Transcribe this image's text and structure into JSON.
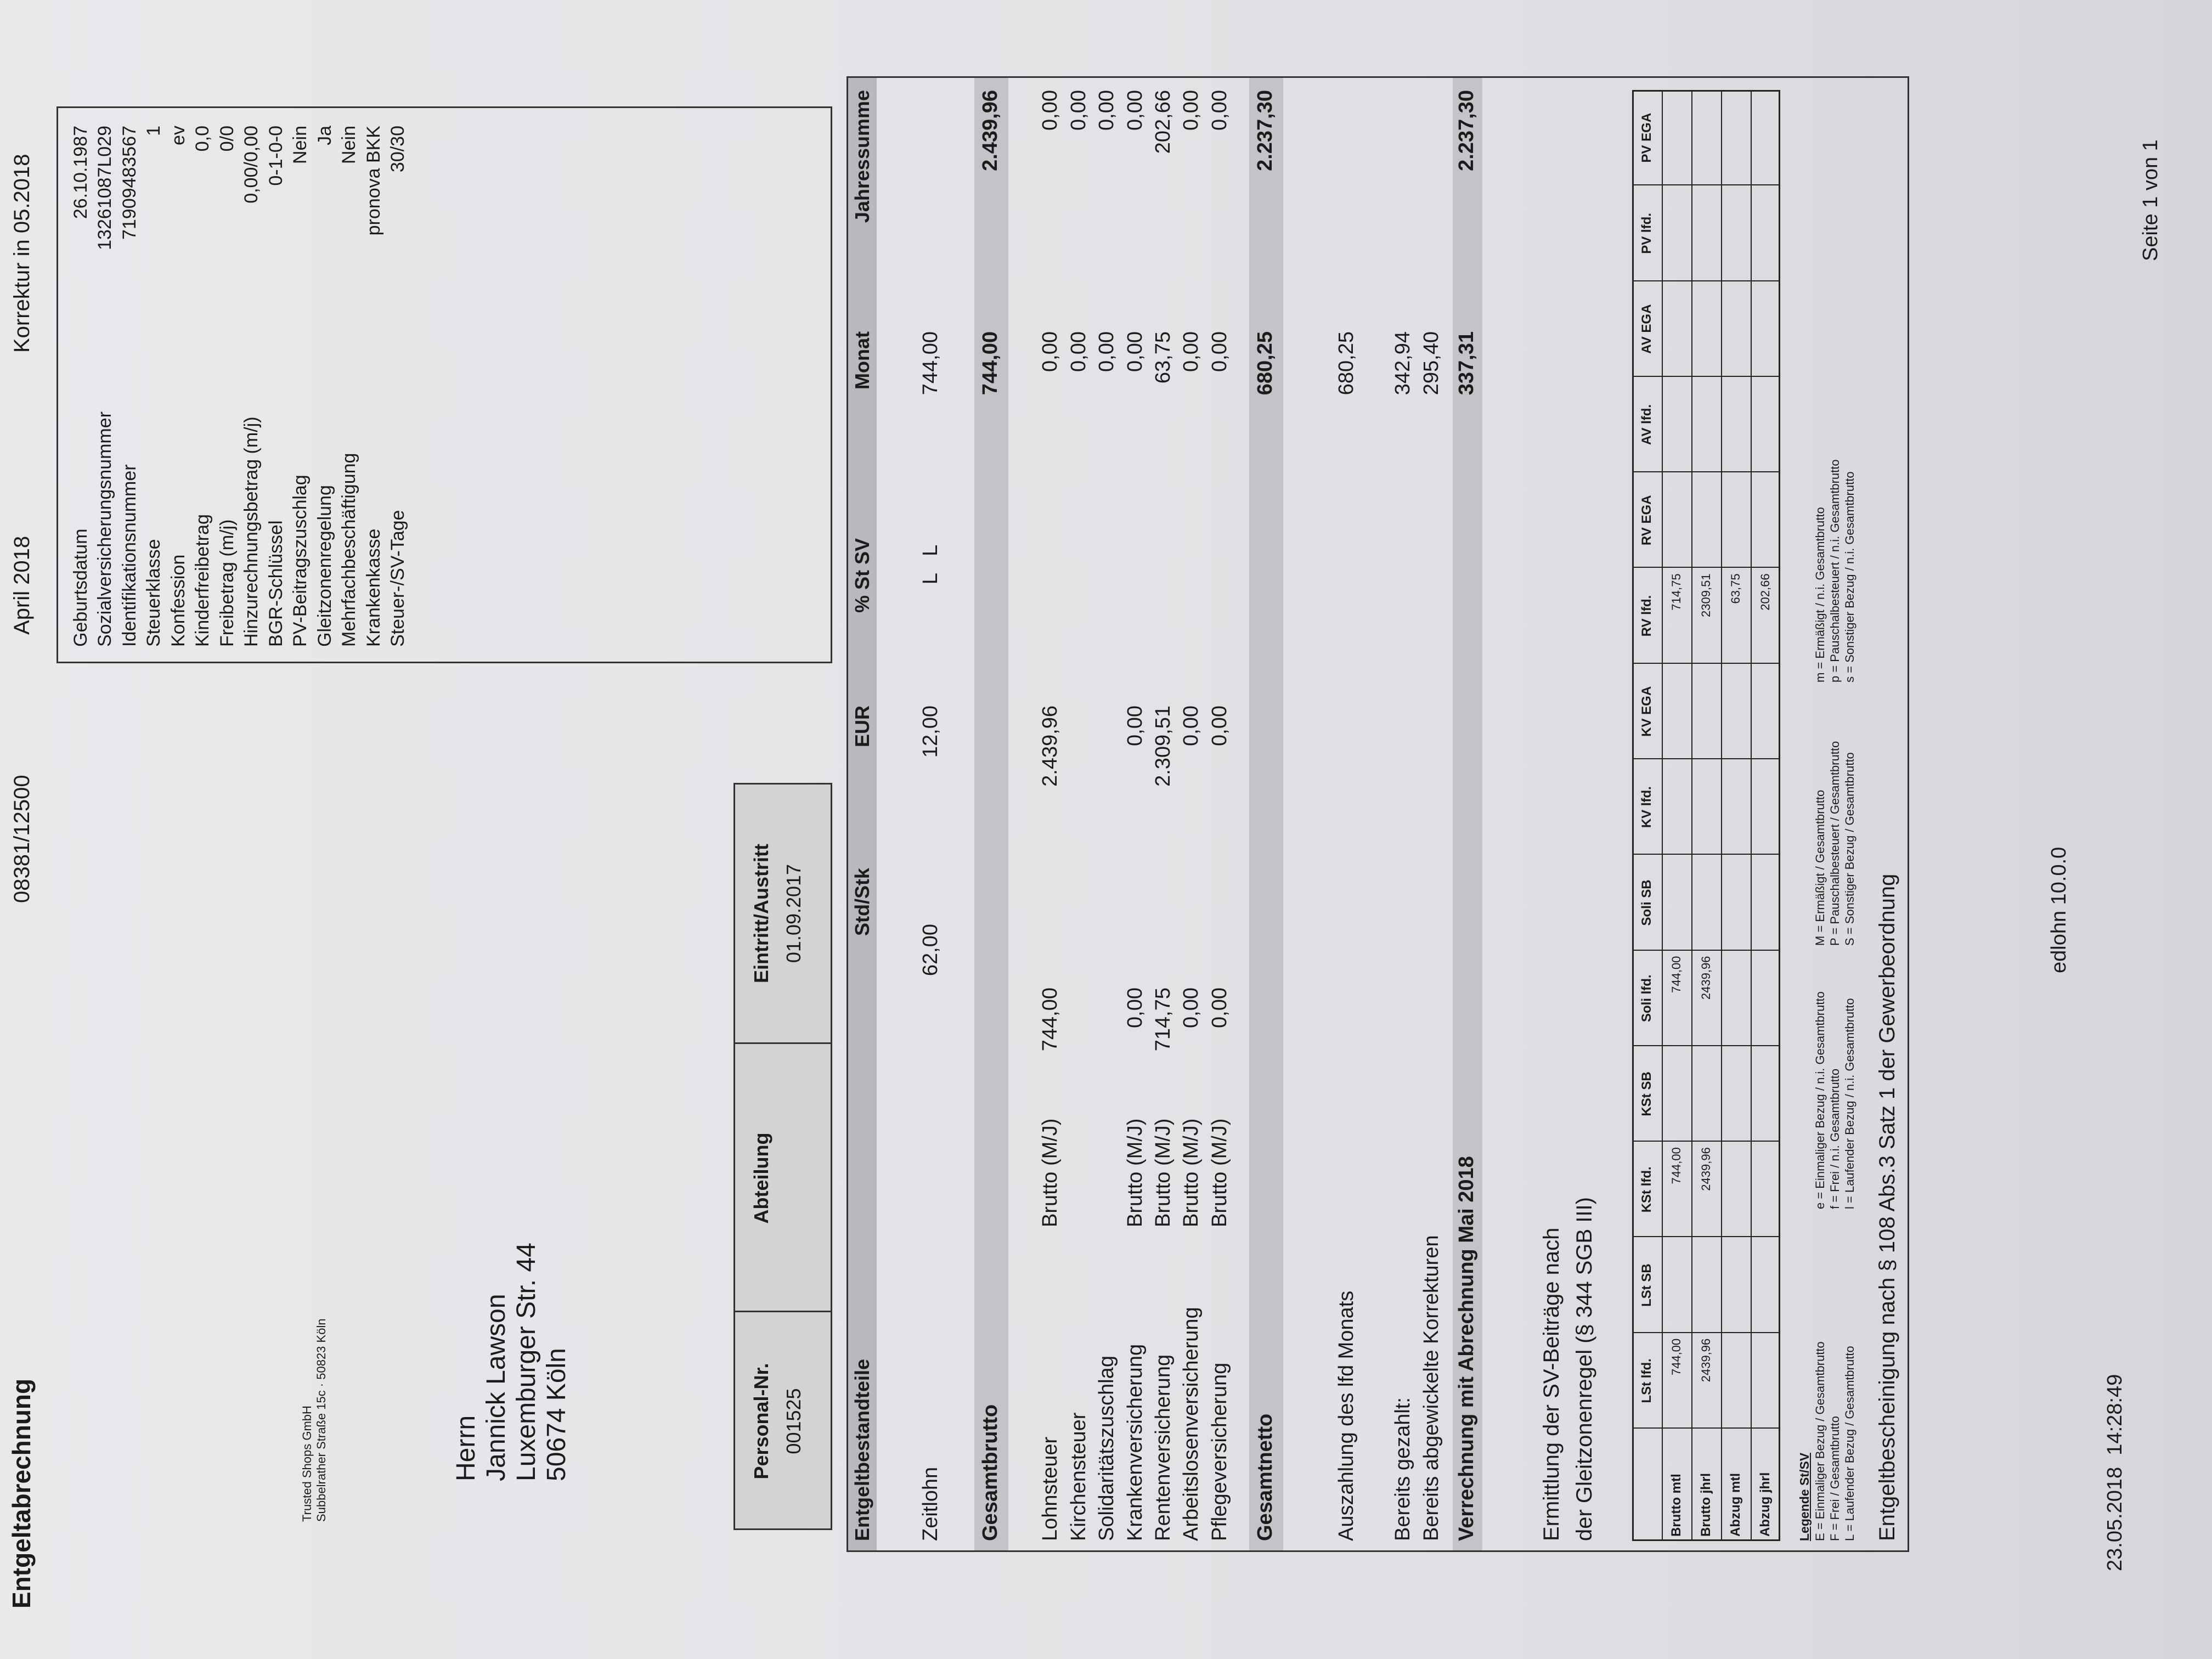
{
  "header": {
    "title": "Entgeltabrechnung",
    "number": "08381/12500",
    "period": "April 2018",
    "correction": "Korrektur in 05.2018"
  },
  "company": {
    "name": "Trusted Shops GmbH",
    "address": "Subbelrather Straße 15c · 50823 Köln"
  },
  "recipient": {
    "salutation": "Herrn",
    "name": "Jannick Lawson",
    "street": "Luxemburger Str. 44",
    "city": "50674 Köln"
  },
  "info": [
    {
      "label": "Geburtsdatum",
      "value": "26.10.1987"
    },
    {
      "label": "Sozialversicherungsnummer",
      "value": "13261087L029"
    },
    {
      "label": "Identifikationsnummer",
      "value": "71909483567"
    },
    {
      "label": "Steuerklasse",
      "value": "1"
    },
    {
      "label": "Konfession",
      "value": "ev"
    },
    {
      "label": "Kinderfreibetrag",
      "value": "0,0"
    },
    {
      "label": "Freibetrag (m/j)",
      "value": "0/0"
    },
    {
      "label": "Hinzurechnungsbetrag (m/j)",
      "value": "0,00/0,00"
    },
    {
      "label": "BGR-Schlüssel",
      "value": "0-1-0-0"
    },
    {
      "label": "PV-Beitragszuschlag",
      "value": "Nein"
    },
    {
      "label": "Gleitzonenregelung",
      "value": "Ja"
    },
    {
      "label": "Mehrfachbeschäftigung",
      "value": "Nein"
    },
    {
      "label": "Krankenkasse",
      "value": "pronova BKK"
    },
    {
      "label": "Steuer-/SV-Tage",
      "value": "30/30"
    }
  ],
  "employee": {
    "headers": [
      "Personal-Nr.",
      "Abteilung",
      "Eintritt/Austritt"
    ],
    "values": [
      "001525",
      null,
      "01.09.2017"
    ]
  },
  "main_table": {
    "headers": [
      "Entgeltbestandteile",
      "Std/Stk",
      "EUR",
      "% St SV",
      "Monat",
      "Jahressumme"
    ],
    "rows": [
      [
        "Zeitlohn",
        null,
        "62,00",
        "12,00",
        "L   L",
        "744,00",
        null
      ],
      [
        "Gesamtbrutto",
        null,
        null,
        null,
        null,
        "744,00",
        "2.439,96"
      ],
      [
        "Lohnsteuer",
        "Brutto (M/J)",
        "744,00",
        "2.439,96",
        null,
        "0,00",
        "0,00"
      ],
      [
        "Kirchensteuer",
        null,
        null,
        null,
        null,
        "0,00",
        "0,00"
      ],
      [
        "Solidaritätszuschlag",
        null,
        null,
        null,
        null,
        "0,00",
        "0,00"
      ],
      [
        "Krankenversicherung",
        "Brutto (M/J)",
        "0,00",
        "0,00",
        null,
        "0,00",
        "0,00"
      ],
      [
        "Rentenversicherung",
        "Brutto (M/J)",
        "714,75",
        "2.309,51",
        null,
        "63,75",
        "202,66"
      ],
      [
        "Arbeitslosenversicherung",
        "Brutto (M/J)",
        "0,00",
        "0,00",
        null,
        "0,00",
        "0,00"
      ],
      [
        "Pflegeversicherung",
        "Brutto (M/J)",
        "0,00",
        "0,00",
        null,
        "0,00",
        "0,00"
      ],
      [
        "Gesamtnetto",
        null,
        null,
        null,
        null,
        "680,25",
        "2.237,30"
      ],
      [
        "Auszahlung des lfd Monats",
        null,
        null,
        null,
        null,
        "680,25",
        null
      ],
      [
        "Bereits gezahlt:",
        null,
        null,
        null,
        null,
        "342,94",
        null
      ],
      [
        "Bereits abgewickelte Korrekturen",
        null,
        null,
        null,
        null,
        "295,40",
        null
      ],
      [
        "Verrechnung mit Abrechnung Mai 2018",
        null,
        null,
        null,
        null,
        "337,31",
        "2.237,30"
      ]
    ]
  },
  "sv_section": {
    "title_lines": [
      "Ermittlung der SV-Beiträge nach",
      "der Gleitzonenregel (§ 344 SGB III)"
    ],
    "columns": [
      "LSt lfd.",
      "LSt SB",
      "KSt lfd.",
      "KSt SB",
      "Soli lfd.",
      "Soli SB",
      "KV lfd.",
      "KV EGA",
      "RV lfd.",
      "RV EGA",
      "AV lfd.",
      "AV EGA",
      "PV lfd.",
      "PV EGA"
    ],
    "rows": [
      {
        "label": "Brutto mtl",
        "cells": [
          "744,00",
          null,
          "744,00",
          null,
          "744,00",
          null,
          null,
          null,
          "714,75",
          null,
          null,
          null,
          null,
          null
        ]
      },
      {
        "label": "Brutto jhrl",
        "cells": [
          "2439,96",
          null,
          "2439,96",
          null,
          "2439,96",
          null,
          null,
          null,
          "2309,51",
          null,
          null,
          null,
          null,
          null
        ]
      },
      {
        "label": "Abzug mtl",
        "cells": [
          null,
          null,
          null,
          null,
          null,
          null,
          null,
          null,
          "63,75",
          null,
          null,
          null,
          null,
          null
        ]
      },
      {
        "label": "Abzug jhrl",
        "cells": [
          null,
          null,
          null,
          null,
          null,
          null,
          null,
          null,
          "202,66",
          null,
          null,
          null,
          null,
          null
        ]
      }
    ]
  },
  "legend": {
    "title": "Legende St/SV",
    "columns": [
      [
        "E = Einmaliger Bezug / Gesamtbrutto",
        "F = Frei / Gesamtbrutto",
        "L = Laufender Bezug / Gesamtbrutto"
      ],
      [
        "e = Einmaliger Bezug / n.i. Gesamtbrutto",
        "f = Frei / n.i. Gesamtbrutto",
        "l = Laufender Bezug / n.i. Gesamtbrutto"
      ],
      [
        "M = Ermäßigt / Gesamtbrutto",
        "P = Pauschalbesteuert / Gesamtbrutto",
        "S = Sonstiger Bezug / Gesamtbrutto"
      ],
      [
        "m = Ermäßigt / n.i. Gesamtbrutto",
        "p = Pauschalbesteuert / n.i. Gesamtbrutto",
        "s = Sonstiger Bezug / n.i. Gesamtbrutto"
      ]
    ]
  },
  "certificate": "Entgeltbescheinigung nach § 108 Abs.3 Satz 1 der Gewerbeordnung",
  "footer": {
    "timestamp": "23.05.2018  14:28:49",
    "software": "edlohn 10.0.0",
    "page": "Seite 1 von 1"
  }
}
